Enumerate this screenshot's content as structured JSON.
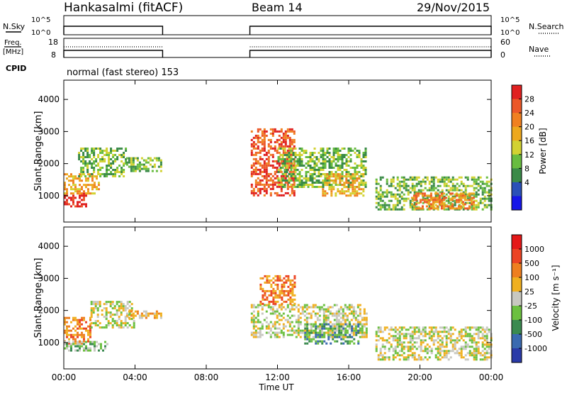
{
  "header": {
    "station": "Hankasalmi (fitACF)",
    "beam": "Beam 14",
    "date": "29/Nov/2015"
  },
  "aux_panels": {
    "nsky_label": "N.Sky",
    "nsky_ticks": [
      "10^5",
      "10^0"
    ],
    "nsearch_label": "N.Search",
    "nsearch_ticks": [
      "10^5",
      "10^0"
    ],
    "freq_label_1": "Freq.",
    "freq_label_2": "[MHz]",
    "freq_ticks": [
      "18",
      "8"
    ],
    "nave_label": "Nave",
    "nave_ticks": [
      "60",
      "0"
    ],
    "cpid_label": "CPID",
    "cpid_text": "normal (fast stereo) 153"
  },
  "colorbars": {
    "power": {
      "label": "Power [dB]",
      "ticks": [
        "28",
        "24",
        "20",
        "16",
        "12",
        "8",
        "4"
      ],
      "colors": [
        "#1616e8",
        "#2a50b8",
        "#3a8a48",
        "#68bc40",
        "#d2d232",
        "#eda81e",
        "#f08020",
        "#ec5828",
        "#e02020"
      ]
    },
    "velocity": {
      "label": "Velocity [m s⁻¹]",
      "ticks": [
        "1000",
        "500",
        "100",
        "25",
        "-25",
        "-100",
        "-500",
        "-1000"
      ],
      "colors": [
        "#2a3aa8",
        "#3a6ab0",
        "#3a8a50",
        "#6cc040",
        "#c8c8c0",
        "#f0b020",
        "#ee7f20",
        "#ec4424",
        "#e41818"
      ]
    }
  },
  "chart_data": [
    {
      "type": "heatmap",
      "name": "power",
      "ylabel": "Slant Range [km]",
      "xlabel": "Time UT",
      "xticks": [
        "00:00",
        "04:00",
        "08:00",
        "12:00",
        "16:00",
        "20:00",
        "00:00"
      ],
      "yticks": [
        "1000",
        "2000",
        "3000",
        "4000"
      ],
      "xlim_hours": [
        0,
        24
      ],
      "ylim_km": [
        180,
        4600
      ],
      "regions": [
        {
          "t0": 0.0,
          "t1": 1.3,
          "r0": 700,
          "r1": 1100,
          "level": 8
        },
        {
          "t0": 0.0,
          "t1": 2.0,
          "r0": 1100,
          "r1": 1700,
          "level": 5
        },
        {
          "t0": 0.8,
          "t1": 3.5,
          "r0": 1600,
          "r1": 2500,
          "level": 3
        },
        {
          "t0": 3.5,
          "t1": 5.5,
          "r0": 1800,
          "r1": 2200,
          "level": 3
        },
        {
          "t0": 10.5,
          "t1": 12.9,
          "r0": 1000,
          "r1": 3100,
          "level": 7
        },
        {
          "t0": 12.0,
          "t1": 17.0,
          "r0": 1300,
          "r1": 2500,
          "level": 3
        },
        {
          "t0": 14.5,
          "t1": 16.8,
          "r0": 1000,
          "r1": 1700,
          "level": 5
        },
        {
          "t0": 17.5,
          "t1": 24.0,
          "r0": 600,
          "r1": 1600,
          "level": 3
        },
        {
          "t0": 19.5,
          "t1": 23.0,
          "r0": 600,
          "r1": 1100,
          "level": 6
        }
      ]
    },
    {
      "type": "heatmap",
      "name": "velocity",
      "ylabel": "Slant Range [km]",
      "xlabel": "Time UT",
      "xticks": [
        "00:00",
        "04:00",
        "08:00",
        "12:00",
        "16:00",
        "20:00",
        "00:00"
      ],
      "yticks": [
        "1000",
        "2000",
        "3000",
        "4000"
      ],
      "xlim_hours": [
        0,
        24
      ],
      "ylim_km": [
        180,
        4600
      ],
      "regions": [
        {
          "t0": 0.0,
          "t1": 1.5,
          "r0": 1000,
          "r1": 1800,
          "level": 6
        },
        {
          "t0": 0.0,
          "t1": 2.5,
          "r0": 750,
          "r1": 1050,
          "level": 3
        },
        {
          "t0": 1.5,
          "t1": 4.0,
          "r0": 1500,
          "r1": 2300,
          "level": 4
        },
        {
          "t0": 3.5,
          "t1": 5.5,
          "r0": 1800,
          "r1": 2000,
          "level": 5
        },
        {
          "t0": 10.5,
          "t1": 17.0,
          "r0": 1200,
          "r1": 2200,
          "level": 4
        },
        {
          "t0": 11.0,
          "t1": 13.0,
          "r0": 2200,
          "r1": 3100,
          "level": 6
        },
        {
          "t0": 13.5,
          "t1": 16.5,
          "r0": 1000,
          "r1": 1600,
          "level": 2
        },
        {
          "t0": 17.5,
          "t1": 24.0,
          "r0": 500,
          "r1": 1500,
          "level": 4
        }
      ]
    }
  ],
  "aux_series": {
    "nsky_segments": [
      [
        0,
        5.55
      ],
      [
        10.45,
        24
      ]
    ],
    "freq_segments": [
      [
        0,
        5.55
      ],
      [
        10.45,
        24
      ]
    ]
  }
}
